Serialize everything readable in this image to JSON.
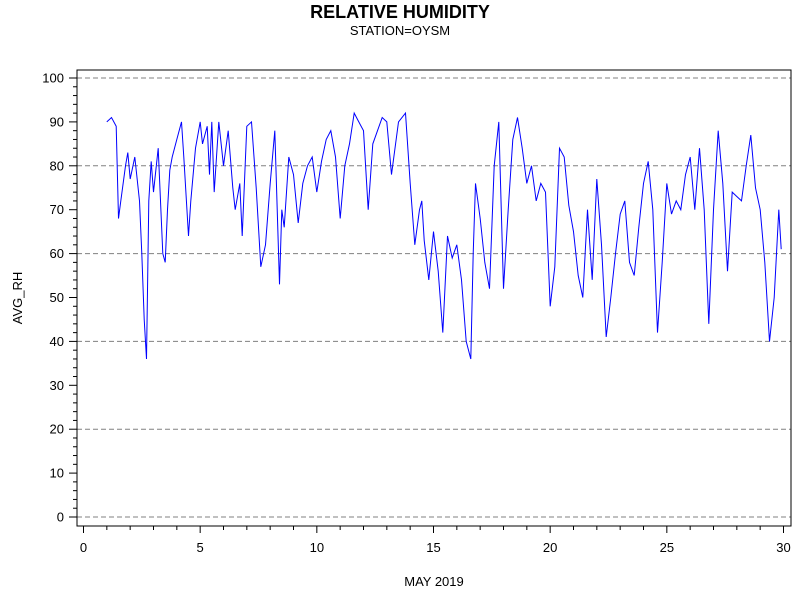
{
  "chart_data": {
    "type": "line",
    "title": "RELATIVE HUMIDITY",
    "subtitle": "STATION=OYSM",
    "xlabel": "MAY 2019",
    "ylabel": "AVG_RH",
    "xlim": [
      0,
      30
    ],
    "ylim": [
      0,
      100
    ],
    "x_ticks": [
      0,
      5,
      10,
      15,
      20,
      25,
      30
    ],
    "y_ticks": [
      0,
      10,
      20,
      30,
      40,
      50,
      60,
      70,
      80,
      90,
      100
    ],
    "gridlines_y": [
      0,
      20,
      40,
      60,
      80,
      100
    ],
    "grid": "horizontal dashed every 20",
    "line_color": "#0000ff",
    "series": [
      {
        "x": [
          1.0,
          1.2,
          1.4,
          1.5,
          1.6,
          1.8,
          1.9,
          2.0,
          2.2,
          2.4,
          2.5,
          2.6,
          2.7,
          2.8,
          2.9,
          3.0,
          3.2,
          3.4,
          3.5,
          3.6,
          3.7,
          3.8,
          4.0,
          4.2,
          4.3,
          4.5,
          4.6,
          4.8,
          5.0,
          5.1,
          5.3,
          5.4,
          5.5,
          5.6,
          5.8,
          6.0,
          6.2,
          6.4,
          6.5,
          6.7,
          6.8,
          7.0,
          7.2,
          7.4,
          7.6,
          7.8,
          8.0,
          8.2,
          8.4,
          8.5,
          8.6,
          8.8,
          9.0,
          9.2,
          9.4,
          9.6,
          9.8,
          10.0,
          10.2,
          10.4,
          10.6,
          10.8,
          11.0,
          11.2,
          11.4,
          11.6,
          11.8,
          12.0,
          12.2,
          12.4,
          12.6,
          12.8,
          13.0,
          13.2,
          13.5,
          13.8,
          14.0,
          14.2,
          14.4,
          14.5,
          14.6,
          14.8,
          15.0,
          15.2,
          15.4,
          15.6,
          15.8,
          16.0,
          16.2,
          16.4,
          16.6,
          16.7,
          16.8,
          17.0,
          17.2,
          17.4,
          17.6,
          17.8,
          18.0,
          18.2,
          18.4,
          18.6,
          18.8,
          19.0,
          19.2,
          19.4,
          19.6,
          19.8,
          20.0,
          20.2,
          20.4,
          20.6,
          20.8,
          21.0,
          21.2,
          21.4,
          21.6,
          21.8,
          22.0,
          22.2,
          22.4,
          22.6,
          22.8,
          23.0,
          23.2,
          23.4,
          23.6,
          23.8,
          24.0,
          24.2,
          24.4,
          24.6,
          24.8,
          25.0,
          25.2,
          25.4,
          25.6,
          25.8,
          26.0,
          26.2,
          26.4,
          26.6,
          26.8,
          27.0,
          27.2,
          27.4,
          27.6,
          27.8,
          28.0,
          28.2,
          28.4,
          28.6,
          28.8,
          29.0,
          29.2,
          29.4,
          29.6,
          29.8,
          29.9
        ],
        "y": [
          90,
          91,
          89,
          68,
          72,
          80,
          83,
          77,
          82,
          72,
          60,
          45,
          36,
          72,
          81,
          74,
          84,
          60,
          58,
          70,
          79,
          82,
          86,
          90,
          82,
          64,
          72,
          84,
          90,
          85,
          89,
          78,
          90,
          74,
          90,
          80,
          88,
          75,
          70,
          76,
          64,
          89,
          90,
          75,
          57,
          62,
          76,
          88,
          53,
          70,
          66,
          82,
          78,
          67,
          76,
          80,
          82,
          74,
          81,
          86,
          88,
          82,
          68,
          80,
          85,
          92,
          90,
          88,
          70,
          85,
          88,
          91,
          90,
          78,
          90,
          92,
          76,
          62,
          70,
          72,
          63,
          54,
          65,
          56,
          42,
          64,
          59,
          62,
          54,
          40,
          36,
          60,
          76,
          68,
          58,
          52,
          80,
          90,
          52,
          70,
          86,
          91,
          84,
          76,
          80,
          72,
          76,
          74,
          48,
          57,
          84,
          82,
          71,
          65,
          55,
          50,
          70,
          54,
          77,
          62,
          41,
          50,
          60,
          69,
          72,
          58,
          55,
          66,
          76,
          81,
          70,
          42,
          58,
          76,
          69,
          72,
          70,
          78,
          82,
          70,
          84,
          70,
          44,
          70,
          88,
          76,
          56,
          74,
          73,
          72,
          80,
          87,
          75,
          70,
          58,
          40,
          50,
          70,
          61
        ]
      }
    ]
  }
}
